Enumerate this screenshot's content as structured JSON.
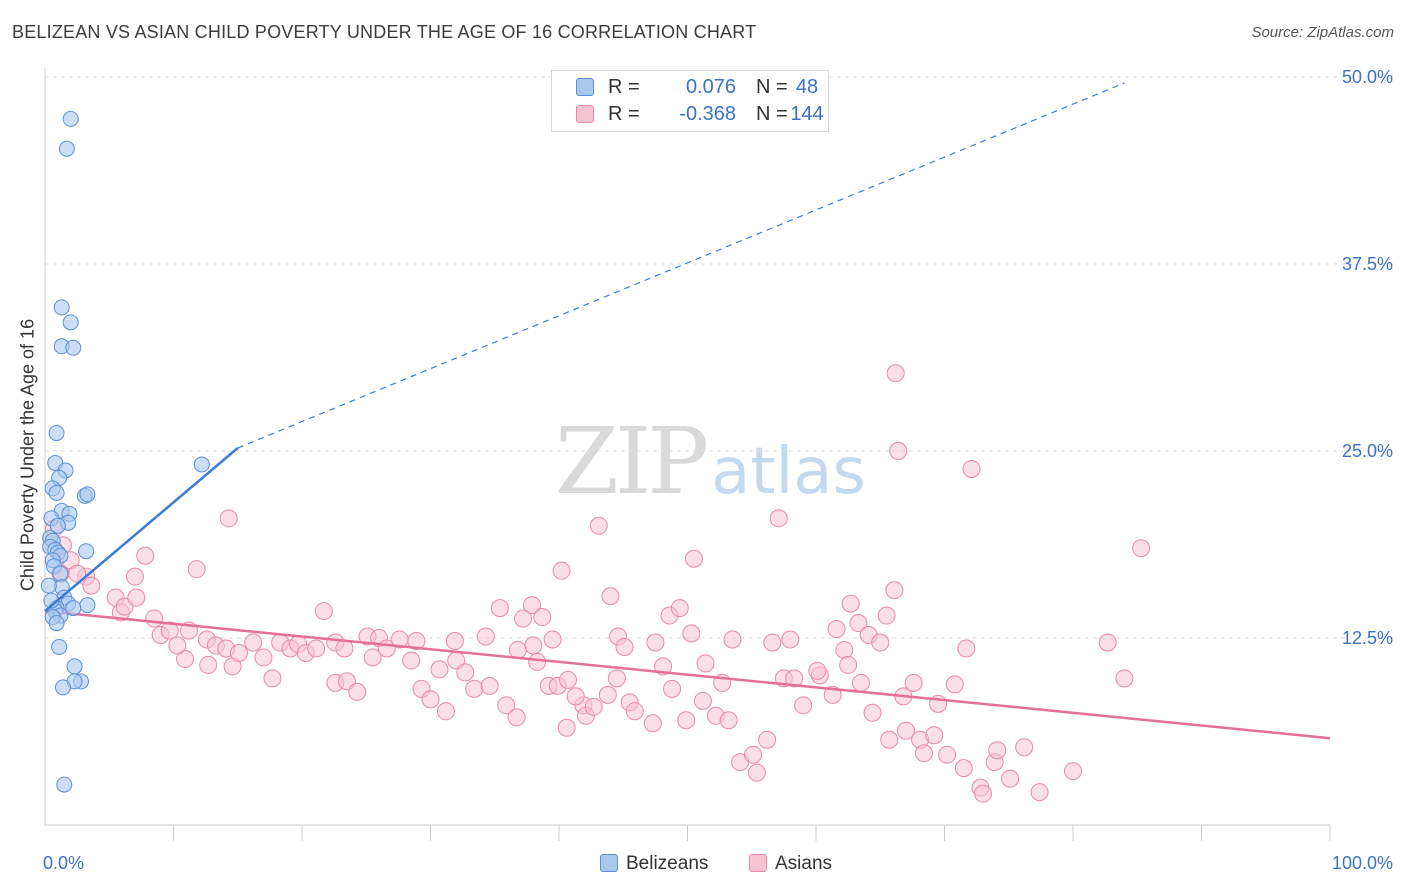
{
  "title": "BELIZEAN VS ASIAN CHILD POVERTY UNDER THE AGE OF 16 CORRELATION CHART",
  "source": "Source: ZipAtlas.com",
  "watermark": {
    "zip": "ZIP",
    "atlas": "atlas"
  },
  "legend": {
    "rows": [
      {
        "r_label": "R =",
        "r_value": "0.076",
        "n_label": "N =",
        "n_value": "48"
      },
      {
        "r_label": "R =",
        "r_value": "-0.368",
        "n_label": "N =",
        "n_value": "144"
      }
    ]
  },
  "colors": {
    "belizeans_fill": "#a9c8ee",
    "belizeans_stroke": "#5b8fd6",
    "belizeans_line": "#3a7bd5",
    "asians_fill": "#f7c3d3",
    "asians_stroke": "#e88aa8",
    "asians_line": "#e46f9a",
    "value_text": "#3a72c4",
    "grid": "#dddddd"
  },
  "chart_data": {
    "type": "scatter",
    "title": "BELIZEAN VS ASIAN CHILD POVERTY UNDER THE AGE OF 16 CORRELATION CHART",
    "xlabel": "",
    "ylabel": "Child Poverty Under the Age of 16",
    "xlim": [
      0,
      100
    ],
    "ylim": [
      0,
      50
    ],
    "x_tick_labels": [
      {
        "value": 0,
        "label": "0.0%"
      },
      {
        "value": 100,
        "label": "100.0%"
      }
    ],
    "y_tick_labels": [
      {
        "value": 12.5,
        "label": "12.5%"
      },
      {
        "value": 25,
        "label": "25.0%"
      },
      {
        "value": 37.5,
        "label": "37.5%"
      },
      {
        "value": 50,
        "label": "50.0%"
      }
    ],
    "series": [
      {
        "name": "Belizeans",
        "R": 0.076,
        "N": 48,
        "trend": {
          "x0": 0,
          "y0": 14.3,
          "x1": 15,
          "y1": 25.2,
          "dashed_to_x": 84,
          "dashed_to_y": 49.6
        },
        "points": [
          [
            2.0,
            47.2
          ],
          [
            1.7,
            45.2
          ],
          [
            1.3,
            34.6
          ],
          [
            2.0,
            33.6
          ],
          [
            1.3,
            32.0
          ],
          [
            2.2,
            31.9
          ],
          [
            0.9,
            26.2
          ],
          [
            0.8,
            24.2
          ],
          [
            1.6,
            23.7
          ],
          [
            1.1,
            23.2
          ],
          [
            0.6,
            22.5
          ],
          [
            0.9,
            22.2
          ],
          [
            3.1,
            22.0
          ],
          [
            3.3,
            22.1
          ],
          [
            1.3,
            21.0
          ],
          [
            1.9,
            20.8
          ],
          [
            0.5,
            20.5
          ],
          [
            1.8,
            20.2
          ],
          [
            0.4,
            19.2
          ],
          [
            0.6,
            19.0
          ],
          [
            0.4,
            18.6
          ],
          [
            0.8,
            18.4
          ],
          [
            1.0,
            18.2
          ],
          [
            1.2,
            18.0
          ],
          [
            3.2,
            18.3
          ],
          [
            0.6,
            17.7
          ],
          [
            0.7,
            17.3
          ],
          [
            1.2,
            16.8
          ],
          [
            1.3,
            15.9
          ],
          [
            1.5,
            15.2
          ],
          [
            3.3,
            14.7
          ],
          [
            1.8,
            14.8
          ],
          [
            0.9,
            14.5
          ],
          [
            0.8,
            14.3
          ],
          [
            2.2,
            14.5
          ],
          [
            1.2,
            14.0
          ],
          [
            0.6,
            13.9
          ],
          [
            0.9,
            13.5
          ],
          [
            1.1,
            11.9
          ],
          [
            2.3,
            10.6
          ],
          [
            2.8,
            9.6
          ],
          [
            2.3,
            9.6
          ],
          [
            1.4,
            9.2
          ],
          [
            1.5,
            2.7
          ],
          [
            12.2,
            24.1
          ],
          [
            0.3,
            16.0
          ],
          [
            0.5,
            15.0
          ],
          [
            1.0,
            20.0
          ]
        ]
      },
      {
        "name": "Asians",
        "R": -0.368,
        "N": 144,
        "trend": {
          "x0": 0,
          "y0": 14.3,
          "x1": 100,
          "y1": 5.8
        },
        "points": [
          [
            66.2,
            30.2
          ],
          [
            66.4,
            25.0
          ],
          [
            72.1,
            23.8
          ],
          [
            14.3,
            20.5
          ],
          [
            43.1,
            20.0
          ],
          [
            57.1,
            20.5
          ],
          [
            85.3,
            18.5
          ],
          [
            0.7,
            19.8
          ],
          [
            1.4,
            18.7
          ],
          [
            2.0,
            17.7
          ],
          [
            1.2,
            16.8
          ],
          [
            3.2,
            16.6
          ],
          [
            3.6,
            16.0
          ],
          [
            7.0,
            16.6
          ],
          [
            7.8,
            18.0
          ],
          [
            11.8,
            17.1
          ],
          [
            40.2,
            17.0
          ],
          [
            50.5,
            17.8
          ],
          [
            10.9,
            11.1
          ],
          [
            12.7,
            10.7
          ],
          [
            14.6,
            10.6
          ],
          [
            21.7,
            14.3
          ],
          [
            22.6,
            12.2
          ],
          [
            23.3,
            11.8
          ],
          [
            25.1,
            12.6
          ],
          [
            25.5,
            11.2
          ],
          [
            29.3,
            9.1
          ],
          [
            30.0,
            8.4
          ],
          [
            32.0,
            11.0
          ],
          [
            32.7,
            10.2
          ],
          [
            34.3,
            12.6
          ],
          [
            35.9,
            8.0
          ],
          [
            36.7,
            7.2
          ],
          [
            38.0,
            12.0
          ],
          [
            38.3,
            10.9
          ],
          [
            39.2,
            9.3
          ],
          [
            39.9,
            9.3
          ],
          [
            40.6,
            6.5
          ],
          [
            41.9,
            8.0
          ],
          [
            42.1,
            7.3
          ],
          [
            44.5,
            9.8
          ],
          [
            45.5,
            8.2
          ],
          [
            45.9,
            7.6
          ],
          [
            47.3,
            6.8
          ],
          [
            48.1,
            10.6
          ],
          [
            48.8,
            9.1
          ],
          [
            49.9,
            7.0
          ],
          [
            51.2,
            8.3
          ],
          [
            52.2,
            7.3
          ],
          [
            53.2,
            7.0
          ],
          [
            54.1,
            4.2
          ],
          [
            55.1,
            4.7
          ],
          [
            55.4,
            3.5
          ],
          [
            56.2,
            5.7
          ],
          [
            57.5,
            9.8
          ],
          [
            58.3,
            9.8
          ],
          [
            59.0,
            8.0
          ],
          [
            60.3,
            10.0
          ],
          [
            61.3,
            8.7
          ],
          [
            62.2,
            11.7
          ],
          [
            62.5,
            10.7
          ],
          [
            63.5,
            9.5
          ],
          [
            64.4,
            7.5
          ],
          [
            65.7,
            5.7
          ],
          [
            67.0,
            6.3
          ],
          [
            68.1,
            5.7
          ],
          [
            69.2,
            6.0
          ],
          [
            70.2,
            4.7
          ],
          [
            71.5,
            3.8
          ],
          [
            72.8,
            2.5
          ],
          [
            73.9,
            4.2
          ],
          [
            75.1,
            3.1
          ],
          [
            77.4,
            2.2
          ],
          [
            80.0,
            3.6
          ],
          [
            82.7,
            12.2
          ],
          [
            84.0,
            9.8
          ],
          [
            2.5,
            16.8
          ],
          [
            5.5,
            15.2
          ],
          [
            5.9,
            14.2
          ],
          [
            6.2,
            14.6
          ],
          [
            7.1,
            15.2
          ],
          [
            8.5,
            13.8
          ],
          [
            9.0,
            12.7
          ],
          [
            9.7,
            13.0
          ],
          [
            10.3,
            12.0
          ],
          [
            11.2,
            13.0
          ],
          [
            12.6,
            12.4
          ],
          [
            13.3,
            12.0
          ],
          [
            14.1,
            11.8
          ],
          [
            15.1,
            11.5
          ],
          [
            16.2,
            12.2
          ],
          [
            17.0,
            11.2
          ],
          [
            17.7,
            9.8
          ],
          [
            18.3,
            12.2
          ],
          [
            19.1,
            11.8
          ],
          [
            19.7,
            12.1
          ],
          [
            20.3,
            11.5
          ],
          [
            21.1,
            11.8
          ],
          [
            22.6,
            9.5
          ],
          [
            23.5,
            9.6
          ],
          [
            24.3,
            8.9
          ],
          [
            26.0,
            12.5
          ],
          [
            26.6,
            11.8
          ],
          [
            27.6,
            12.4
          ],
          [
            28.5,
            11.0
          ],
          [
            28.9,
            12.3
          ],
          [
            30.7,
            10.4
          ],
          [
            31.2,
            7.6
          ],
          [
            31.9,
            12.3
          ],
          [
            33.4,
            9.1
          ],
          [
            34.6,
            9.3
          ],
          [
            35.4,
            14.5
          ],
          [
            36.8,
            11.7
          ],
          [
            37.2,
            13.8
          ],
          [
            37.9,
            14.7
          ],
          [
            38.7,
            13.9
          ],
          [
            39.5,
            12.4
          ],
          [
            40.7,
            9.7
          ],
          [
            41.3,
            8.6
          ],
          [
            42.7,
            7.9
          ],
          [
            43.8,
            8.7
          ],
          [
            44.0,
            15.3
          ],
          [
            44.6,
            12.6
          ],
          [
            45.1,
            11.9
          ],
          [
            47.5,
            12.2
          ],
          [
            48.6,
            14.0
          ],
          [
            49.4,
            14.5
          ],
          [
            50.3,
            12.8
          ],
          [
            51.4,
            10.8
          ],
          [
            52.7,
            9.5
          ],
          [
            53.5,
            12.4
          ],
          [
            56.6,
            12.2
          ],
          [
            58.0,
            12.4
          ],
          [
            60.1,
            10.3
          ],
          [
            61.6,
            13.1
          ],
          [
            62.7,
            14.8
          ],
          [
            63.3,
            13.5
          ],
          [
            64.1,
            12.7
          ],
          [
            65.0,
            12.2
          ],
          [
            65.5,
            14.0
          ],
          [
            66.1,
            15.7
          ],
          [
            66.8,
            8.6
          ],
          [
            67.6,
            9.5
          ],
          [
            68.4,
            4.8
          ],
          [
            69.5,
            8.1
          ],
          [
            70.8,
            9.4
          ],
          [
            71.7,
            11.8
          ],
          [
            73.0,
            2.1
          ],
          [
            74.1,
            5.0
          ],
          [
            76.2,
            5.2
          ]
        ]
      }
    ]
  },
  "bottom_legend": [
    {
      "label": "Belizeans"
    },
    {
      "label": "Asians"
    }
  ]
}
